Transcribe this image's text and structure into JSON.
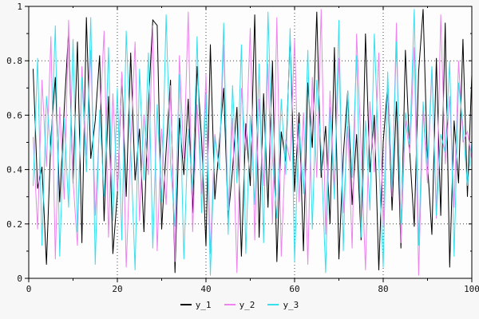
{
  "chart_data": {
    "type": "line",
    "title": "",
    "xlabel": "",
    "ylabel": "",
    "xlim": [
      0,
      100
    ],
    "ylim": [
      0,
      1
    ],
    "x_ticks": [
      0,
      20,
      40,
      60,
      80,
      100
    ],
    "x_tick_labels": [
      "0",
      "20",
      "40",
      "60",
      "80",
      "100"
    ],
    "y_ticks": [
      0,
      0.2,
      0.4,
      0.6,
      0.8,
      1
    ],
    "y_tick_labels": [
      "0",
      "0.2",
      "0.4",
      "0.6",
      "0.8",
      "1"
    ],
    "x_minor_step": 10,
    "y_minor_step": 0.1,
    "grid": "dotted",
    "legend_position": "bottom-center",
    "x_first": 1,
    "x_step": 1,
    "plot_background": "#fdfdfd",
    "frame_color": "#000000",
    "grid_color": "#444444",
    "series": [
      {
        "name": "y_1",
        "color": "#000000",
        "values": [
          0.77,
          0.33,
          0.41,
          0.05,
          0.52,
          0.74,
          0.28,
          0.62,
          0.91,
          0.35,
          0.87,
          0.13,
          0.96,
          0.44,
          0.58,
          0.82,
          0.21,
          0.67,
          0.09,
          0.31,
          0.75,
          0.3,
          0.83,
          0.36,
          0.55,
          0.17,
          0.64,
          0.95,
          0.93,
          0.18,
          0.47,
          0.73,
          0.02,
          0.59,
          0.38,
          0.66,
          0.24,
          0.78,
          0.51,
          0.12,
          0.86,
          0.29,
          0.49,
          0.7,
          0.22,
          0.4,
          0.63,
          0.08,
          0.57,
          0.34,
          0.97,
          0.15,
          0.68,
          0.26,
          0.8,
          0.06,
          0.54,
          0.43,
          0.89,
          0.32,
          0.61,
          0.1,
          0.72,
          0.48,
          0.98,
          0.37,
          0.56,
          0.2,
          0.85,
          0.07,
          0.45,
          0.69,
          0.27,
          0.53,
          0.14,
          0.9,
          0.39,
          0.6,
          0.03,
          0.5,
          0.71,
          0.25,
          0.65,
          0.11,
          0.84,
          0.46,
          0.19,
          0.76,
          0.99,
          0.42,
          0.16,
          0.81,
          0.23,
          0.94,
          0.04,
          0.58,
          0.35,
          0.88,
          0.3,
          0.75
        ]
      },
      {
        "name": "y_2",
        "color": "#ee82ee",
        "values": [
          0.52,
          0.18,
          0.73,
          0.41,
          0.89,
          0.07,
          0.63,
          0.29,
          0.95,
          0.36,
          0.12,
          0.78,
          0.45,
          0.84,
          0.23,
          0.57,
          0.91,
          0.15,
          0.68,
          0.32,
          0.76,
          0.04,
          0.49,
          0.87,
          0.21,
          0.6,
          0.38,
          0.93,
          0.1,
          0.55,
          0.27,
          0.71,
          0.06,
          0.82,
          0.44,
          0.98,
          0.17,
          0.64,
          0.31,
          0.75,
          0.09,
          0.53,
          0.4,
          0.86,
          0.25,
          0.59,
          0.02,
          0.7,
          0.47,
          0.92,
          0.14,
          0.66,
          0.34,
          0.79,
          0.2,
          0.96,
          0.08,
          0.51,
          0.43,
          0.88,
          0.28,
          0.61,
          0.05,
          0.74,
          0.37,
          0.99,
          0.16,
          0.69,
          0.33,
          0.81,
          0.24,
          0.56,
          0.11,
          0.9,
          0.48,
          0.03,
          0.65,
          0.39,
          0.83,
          0.19,
          0.72,
          0.3,
          0.94,
          0.13,
          0.58,
          0.46,
          0.85,
          0.01,
          0.62,
          0.35,
          0.77,
          0.22,
          0.97,
          0.42,
          0.67,
          0.26,
          0.8,
          0.5,
          0.54,
          0.44
        ]
      },
      {
        "name": "y_3",
        "color": "#35dfee",
        "values": [
          0.34,
          0.81,
          0.12,
          0.67,
          0.45,
          0.93,
          0.08,
          0.59,
          0.26,
          0.88,
          0.17,
          0.74,
          0.39,
          0.96,
          0.05,
          0.62,
          0.3,
          0.85,
          0.21,
          0.7,
          0.14,
          0.91,
          0.48,
          0.03,
          0.77,
          0.36,
          0.83,
          0.11,
          0.64,
          0.28,
          0.97,
          0.42,
          0.19,
          0.75,
          0.07,
          0.55,
          0.32,
          0.89,
          0.24,
          0.68,
          0.01,
          0.52,
          0.4,
          0.94,
          0.16,
          0.71,
          0.35,
          0.86,
          0.09,
          0.6,
          0.27,
          0.79,
          0.13,
          0.98,
          0.44,
          0.22,
          0.66,
          0.38,
          0.92,
          0.06,
          0.57,
          0.31,
          0.84,
          0.18,
          0.73,
          0.47,
          0.02,
          0.63,
          0.29,
          0.95,
          0.1,
          0.69,
          0.37,
          0.82,
          0.15,
          0.58,
          0.25,
          0.9,
          0.43,
          0.04,
          0.76,
          0.33,
          0.87,
          0.2,
          0.61,
          0.49,
          0.99,
          0.12,
          0.65,
          0.41,
          0.78,
          0.23,
          0.53,
          0.46,
          0.8,
          0.08,
          0.72,
          0.56,
          0.34,
          0.5
        ]
      }
    ]
  }
}
